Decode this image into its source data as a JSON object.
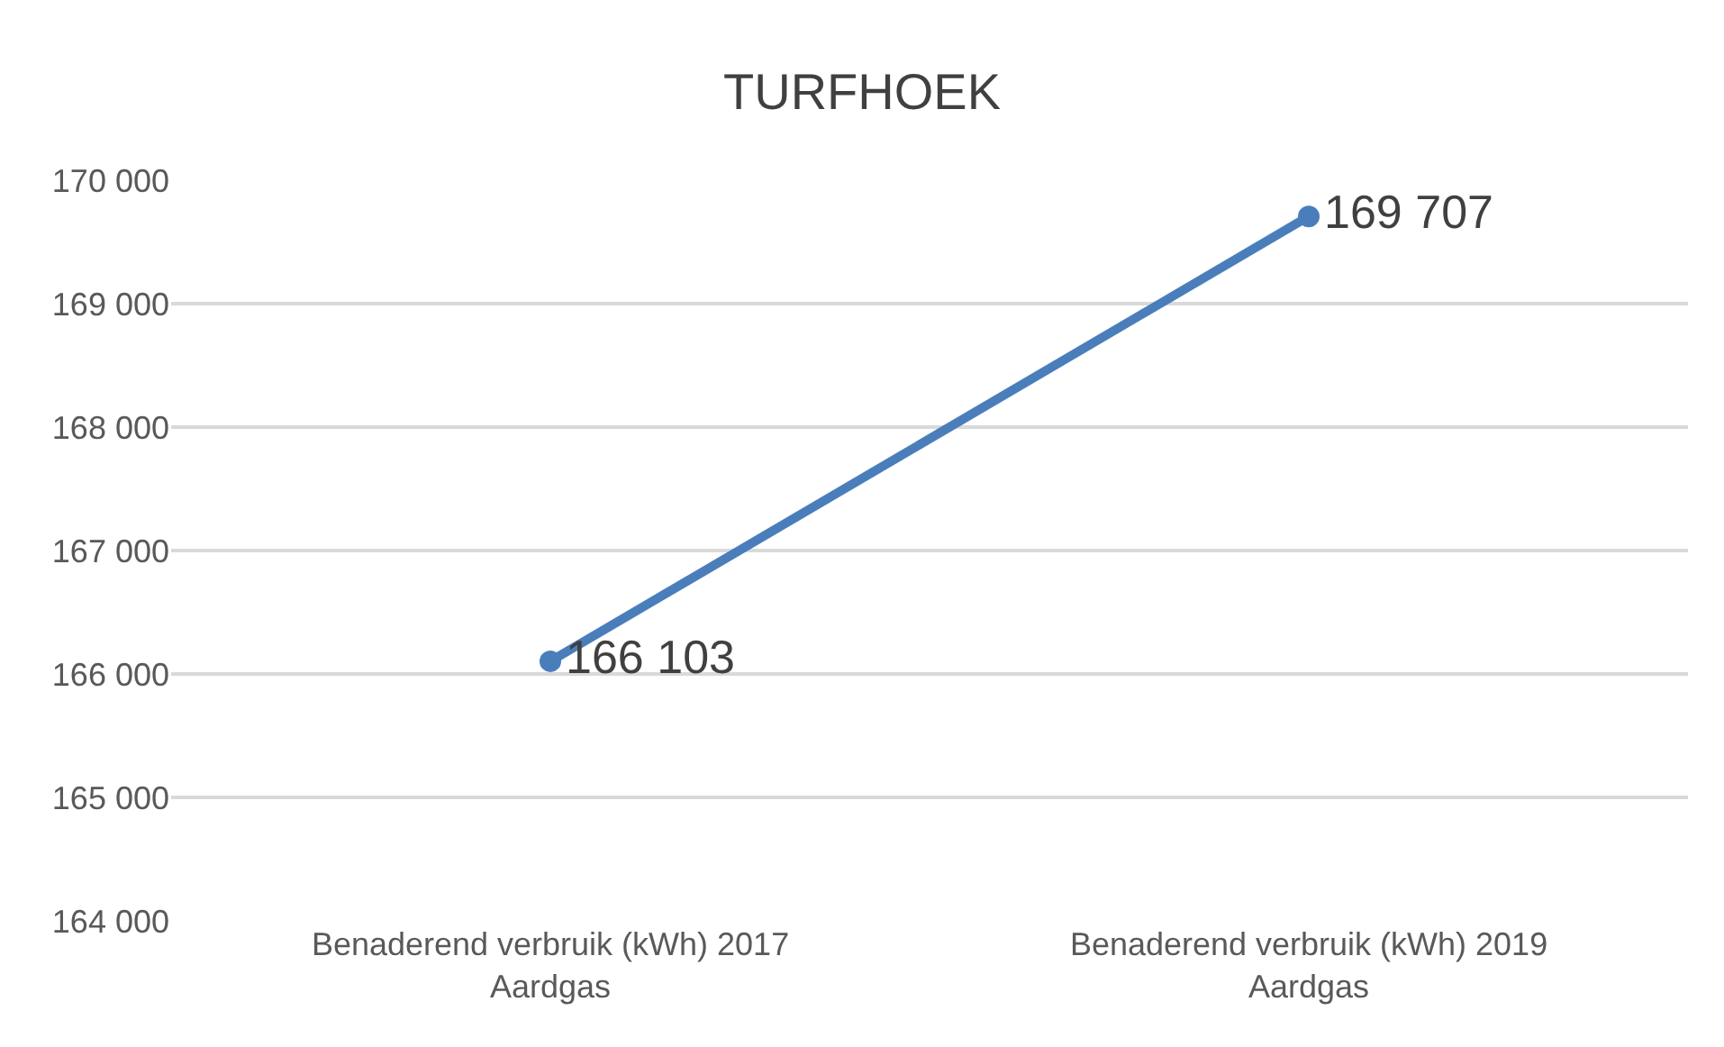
{
  "chart_data": {
    "type": "line",
    "title": "TURFHOEK",
    "categories": [
      "Benaderend verbruik (kWh) 2017\nAardgas",
      "Benaderend verbruik (kWh) 2019\nAardgas"
    ],
    "series": [
      {
        "color": "#4a7ebb",
        "values": [
          166103,
          169707
        ],
        "value_labels": [
          "166 103",
          "169 707"
        ]
      }
    ],
    "ylim": [
      164000,
      170000
    ],
    "yticks": [
      {
        "value": 164000,
        "label": "164 000"
      },
      {
        "value": 165000,
        "label": "165 000"
      },
      {
        "value": 166000,
        "label": "166 000"
      },
      {
        "value": 167000,
        "label": "167 000"
      },
      {
        "value": 168000,
        "label": "168 000"
      },
      {
        "value": 169000,
        "label": "169 000"
      },
      {
        "value": 170000,
        "label": "170 000"
      }
    ],
    "grid": "y",
    "legend": false,
    "marker": "circle",
    "line_style": "solid"
  }
}
